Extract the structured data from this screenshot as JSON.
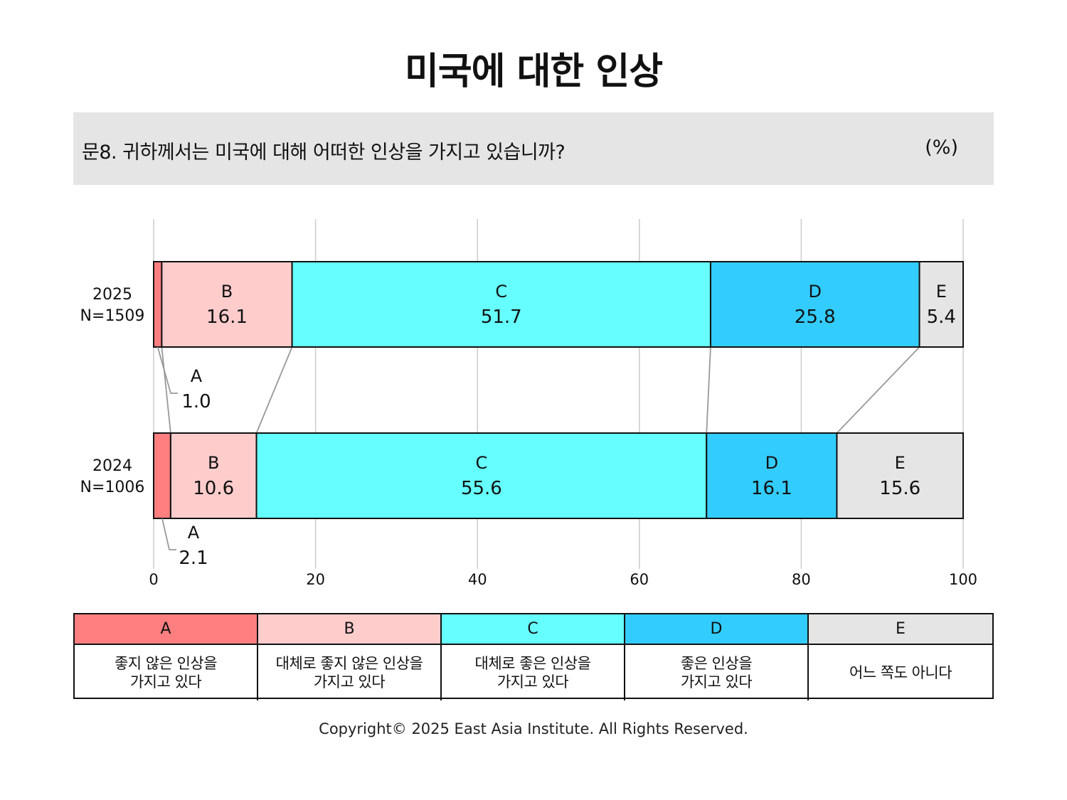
{
  "title": "미국에 대한 인상",
  "question": {
    "text": "문8. 귀하께서는 미국에 대해 어떠한 인상을 가지고 있습니까?",
    "unit": "(%)"
  },
  "chart_data": {
    "type": "bar",
    "orientation": "horizontal",
    "stacked": true,
    "xlim": [
      0,
      100
    ],
    "x_ticks": [
      0,
      20,
      40,
      60,
      80,
      100
    ],
    "grid": true,
    "rows": [
      {
        "label_line1": "2025",
        "label_line2": "N=1509"
      },
      {
        "label_line1": "2024",
        "label_line2": "N=1006"
      }
    ],
    "series": [
      {
        "name": "A",
        "color": "#ff7f80",
        "values": [
          1.0,
          2.1
        ]
      },
      {
        "name": "B",
        "color": "#ffcccc",
        "values": [
          16.1,
          10.6
        ]
      },
      {
        "name": "C",
        "color": "#66ffff",
        "values": [
          51.7,
          55.6
        ]
      },
      {
        "name": "D",
        "color": "#33ccff",
        "values": [
          25.8,
          16.1
        ]
      },
      {
        "name": "E",
        "color": "#e6e5e6",
        "values": [
          5.4,
          15.6
        ]
      }
    ]
  },
  "legend": [
    {
      "key": "A",
      "desc": "좋지 않은 인상을\n가지고 있다",
      "color": "#ff7f80"
    },
    {
      "key": "B",
      "desc": "대체로 좋지 않은 인상을\n가지고 있다",
      "color": "#ffcccc"
    },
    {
      "key": "C",
      "desc": "대체로 좋은 인상을\n가지고 있다",
      "color": "#66ffff"
    },
    {
      "key": "D",
      "desc": "좋은 인상을\n가지고 있다",
      "color": "#33ccff"
    },
    {
      "key": "E",
      "desc": "어느 쪽도 아니다",
      "color": "#e6e5e6"
    }
  ],
  "copyright": "Copyright© 2025 East Asia Institute. All Rights Reserved."
}
